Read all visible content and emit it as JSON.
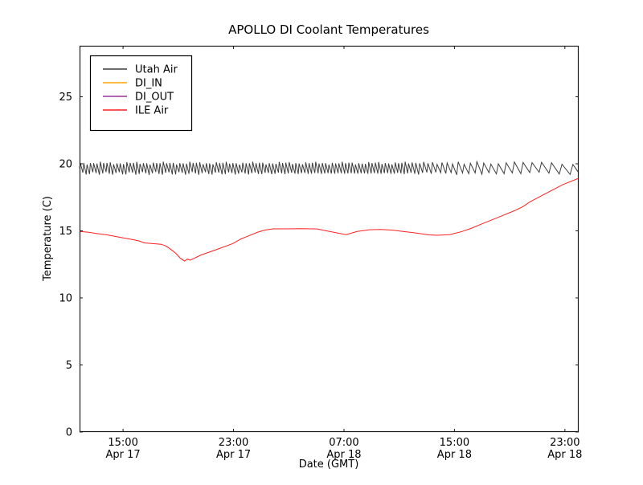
{
  "chart_data": {
    "type": "line",
    "title": "APOLLO DI Coolant Temperatures",
    "xlabel": "Date (GMT)",
    "ylabel": "Temperature (C)",
    "background_color": "#ffffff",
    "frame_color": "#1a1a1a",
    "legend_position": "upper-left",
    "grid": false,
    "x_domain_hours": [
      0,
      36.15
    ],
    "ylim": [
      0,
      28.8
    ],
    "y_ticks": [
      0,
      5,
      10,
      15,
      20,
      25
    ],
    "x_ticks": [
      {
        "h": 3.15,
        "time": "15:00",
        "date": "Apr 17"
      },
      {
        "h": 11.15,
        "time": "23:00",
        "date": "Apr 17"
      },
      {
        "h": 19.15,
        "time": "07:00",
        "date": "Apr 18"
      },
      {
        "h": 27.15,
        "time": "15:00",
        "date": "Apr 18"
      },
      {
        "h": 35.15,
        "time": "23:00",
        "date": "Apr 18"
      }
    ],
    "series": [
      {
        "name": "Utah Air",
        "color": "#3d3d3d",
        "style": "oscillation",
        "osc": {
          "t_start": 0,
          "t_end": 36.15,
          "high": 20.05,
          "low": 19.28,
          "jitter": 0.09,
          "period_h_dense": 0.24,
          "dense_until_h": 23.5,
          "period_h_end": 0.85
        }
      },
      {
        "name": "DI_IN",
        "color": "#ffa500",
        "style": "points",
        "points": []
      },
      {
        "name": "DI_OUT",
        "color": "#993399",
        "style": "points",
        "points": []
      },
      {
        "name": "ILE Air",
        "color": "#ff2020",
        "style": "points",
        "points": [
          [
            0,
            14.95
          ],
          [
            0.6,
            14.9
          ],
          [
            1.2,
            14.8
          ],
          [
            2.0,
            14.7
          ],
          [
            3.0,
            14.5
          ],
          [
            3.8,
            14.35
          ],
          [
            4.3,
            14.25
          ],
          [
            4.7,
            14.1
          ],
          [
            5.9,
            14.0
          ],
          [
            6.2,
            13.9
          ],
          [
            6.5,
            13.7
          ],
          [
            7.0,
            13.3
          ],
          [
            7.3,
            12.95
          ],
          [
            7.6,
            12.75
          ],
          [
            7.8,
            12.9
          ],
          [
            8.0,
            12.82
          ],
          [
            8.3,
            12.95
          ],
          [
            8.8,
            13.2
          ],
          [
            9.9,
            13.6
          ],
          [
            11.1,
            14.05
          ],
          [
            11.7,
            14.4
          ],
          [
            12.3,
            14.65
          ],
          [
            12.9,
            14.9
          ],
          [
            13.4,
            15.05
          ],
          [
            14.0,
            15.15
          ],
          [
            15.0,
            15.15
          ],
          [
            16.0,
            15.16
          ],
          [
            17.2,
            15.14
          ],
          [
            18.1,
            14.95
          ],
          [
            19.3,
            14.72
          ],
          [
            20.1,
            14.95
          ],
          [
            21.0,
            15.08
          ],
          [
            21.8,
            15.1
          ],
          [
            22.7,
            15.05
          ],
          [
            23.3,
            14.97
          ],
          [
            24.5,
            14.82
          ],
          [
            25.3,
            14.7
          ],
          [
            25.9,
            14.67
          ],
          [
            26.8,
            14.72
          ],
          [
            27.7,
            14.95
          ],
          [
            28.4,
            15.2
          ],
          [
            29.1,
            15.5
          ],
          [
            30.3,
            16.0
          ],
          [
            31.5,
            16.5
          ],
          [
            32.1,
            16.8
          ],
          [
            32.6,
            17.15
          ],
          [
            33.8,
            17.8
          ],
          [
            35.0,
            18.45
          ],
          [
            36.15,
            18.92
          ]
        ]
      }
    ]
  }
}
